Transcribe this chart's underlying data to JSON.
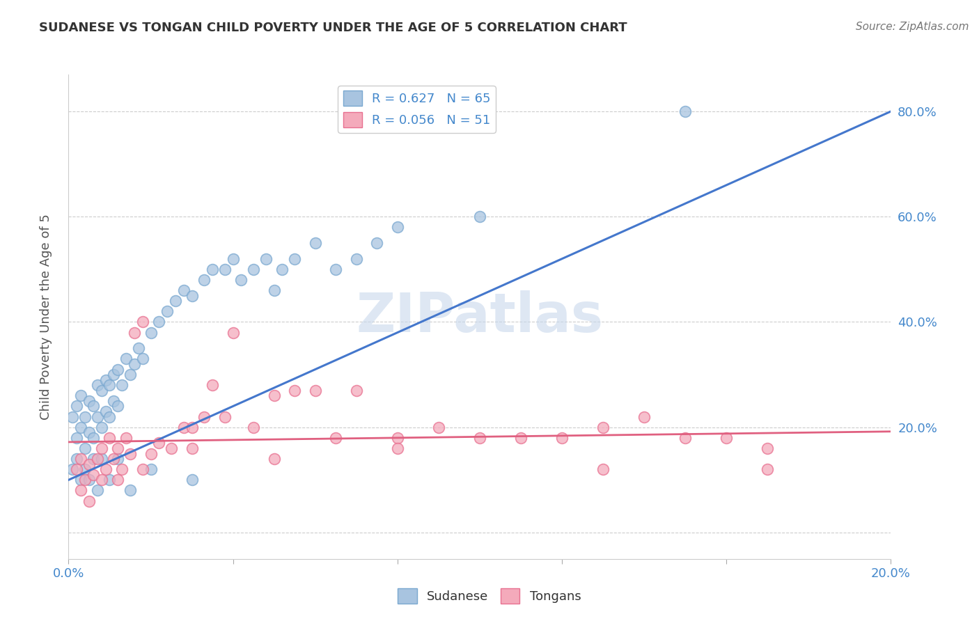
{
  "title": "SUDANESE VS TONGAN CHILD POVERTY UNDER THE AGE OF 5 CORRELATION CHART",
  "source": "Source: ZipAtlas.com",
  "ylabel": "Child Poverty Under the Age of 5",
  "xlim": [
    0.0,
    0.2
  ],
  "ylim": [
    -0.05,
    0.87
  ],
  "sudanese_R": 0.627,
  "sudanese_N": 65,
  "tongan_R": 0.056,
  "tongan_N": 51,
  "sudanese_color": "#A8C4E0",
  "tongan_color": "#F4AABB",
  "sudanese_edge_color": "#7AA8D0",
  "tongan_edge_color": "#E87090",
  "sudanese_line_color": "#4477CC",
  "tongan_line_color": "#E06080",
  "watermark_color": "#C8D8EC",
  "background_color": "#FFFFFF",
  "grid_color": "#CCCCCC",
  "title_color": "#333333",
  "tick_color": "#4488CC",
  "ylabel_color": "#555555",
  "sudanese_x": [
    0.001,
    0.002,
    0.002,
    0.003,
    0.003,
    0.004,
    0.004,
    0.005,
    0.005,
    0.006,
    0.006,
    0.007,
    0.007,
    0.008,
    0.008,
    0.009,
    0.009,
    0.01,
    0.01,
    0.011,
    0.011,
    0.012,
    0.012,
    0.013,
    0.014,
    0.015,
    0.016,
    0.017,
    0.018,
    0.02,
    0.022,
    0.024,
    0.026,
    0.028,
    0.03,
    0.033,
    0.035,
    0.038,
    0.04,
    0.042,
    0.045,
    0.048,
    0.05,
    0.052,
    0.055,
    0.06,
    0.065,
    0.07,
    0.075,
    0.08,
    0.001,
    0.002,
    0.003,
    0.004,
    0.005,
    0.006,
    0.007,
    0.008,
    0.01,
    0.012,
    0.015,
    0.02,
    0.03,
    0.1,
    0.15
  ],
  "sudanese_y": [
    0.22,
    0.18,
    0.24,
    0.2,
    0.26,
    0.16,
    0.22,
    0.19,
    0.25,
    0.18,
    0.24,
    0.22,
    0.28,
    0.2,
    0.27,
    0.23,
    0.29,
    0.22,
    0.28,
    0.25,
    0.3,
    0.24,
    0.31,
    0.28,
    0.33,
    0.3,
    0.32,
    0.35,
    0.33,
    0.38,
    0.4,
    0.42,
    0.44,
    0.46,
    0.45,
    0.48,
    0.5,
    0.5,
    0.52,
    0.48,
    0.5,
    0.52,
    0.46,
    0.5,
    0.52,
    0.55,
    0.5,
    0.52,
    0.55,
    0.58,
    0.12,
    0.14,
    0.1,
    0.12,
    0.1,
    0.14,
    0.08,
    0.14,
    0.1,
    0.14,
    0.08,
    0.12,
    0.1,
    0.6,
    0.8
  ],
  "tongan_x": [
    0.002,
    0.003,
    0.004,
    0.005,
    0.006,
    0.007,
    0.008,
    0.009,
    0.01,
    0.011,
    0.012,
    0.013,
    0.014,
    0.015,
    0.016,
    0.018,
    0.02,
    0.022,
    0.025,
    0.028,
    0.03,
    0.033,
    0.035,
    0.038,
    0.04,
    0.045,
    0.05,
    0.055,
    0.06,
    0.065,
    0.07,
    0.08,
    0.09,
    0.1,
    0.11,
    0.12,
    0.13,
    0.14,
    0.15,
    0.16,
    0.17,
    0.003,
    0.005,
    0.008,
    0.012,
    0.018,
    0.03,
    0.05,
    0.08,
    0.13,
    0.17
  ],
  "tongan_y": [
    0.12,
    0.14,
    0.1,
    0.13,
    0.11,
    0.14,
    0.16,
    0.12,
    0.18,
    0.14,
    0.16,
    0.12,
    0.18,
    0.15,
    0.38,
    0.4,
    0.15,
    0.17,
    0.16,
    0.2,
    0.2,
    0.22,
    0.28,
    0.22,
    0.38,
    0.2,
    0.26,
    0.27,
    0.27,
    0.18,
    0.27,
    0.18,
    0.2,
    0.18,
    0.18,
    0.18,
    0.2,
    0.22,
    0.18,
    0.18,
    0.16,
    0.08,
    0.06,
    0.1,
    0.1,
    0.12,
    0.16,
    0.14,
    0.16,
    0.12,
    0.12
  ],
  "sue_line_x": [
    0.0,
    0.2
  ],
  "sue_line_y": [
    0.1,
    0.8
  ],
  "ton_line_x": [
    0.0,
    0.2
  ],
  "ton_line_y": [
    0.172,
    0.192
  ]
}
